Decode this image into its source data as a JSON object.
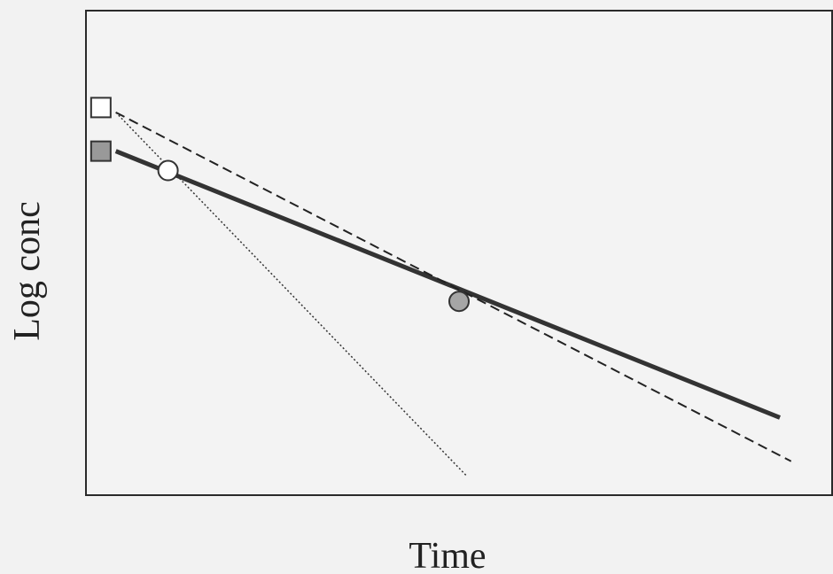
{
  "chart_data": {
    "type": "line",
    "title": "",
    "xlabel": "Time",
    "ylabel": "Log conc",
    "xlim": [
      0,
      10
    ],
    "ylim": [
      0,
      10
    ],
    "grid": false,
    "tick_labels": false,
    "series": [
      {
        "style": "solid",
        "color": "#333333",
        "points": [
          [
            0.4,
            7.1
          ],
          [
            9.3,
            1.6
          ]
        ]
      },
      {
        "style": "dashed",
        "color": "#222222",
        "points": [
          [
            0.4,
            7.9
          ],
          [
            9.45,
            0.7
          ]
        ]
      },
      {
        "style": "dotted",
        "color": "#333333",
        "points": [
          [
            0.4,
            7.9
          ],
          [
            5.1,
            0.4
          ]
        ]
      }
    ],
    "markers": [
      {
        "shape": "square",
        "fill": "#ffffff",
        "x": 0.2,
        "y": 8.0
      },
      {
        "shape": "square",
        "fill": "#999999",
        "x": 0.2,
        "y": 7.1
      },
      {
        "shape": "circle",
        "fill": "#ffffff",
        "x": 1.1,
        "y": 6.7
      },
      {
        "shape": "circle",
        "fill": "#a6a6a6",
        "x": 5.0,
        "y": 4.0
      }
    ]
  }
}
